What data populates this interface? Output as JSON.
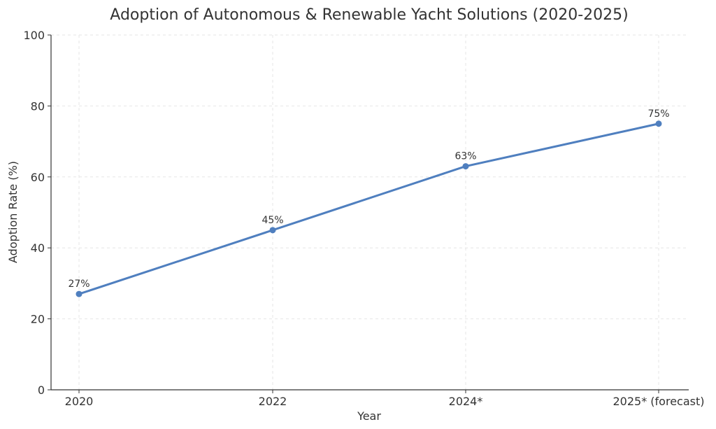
{
  "chart_data": {
    "type": "line",
    "title": "Adoption of Autonomous & Renewable Yacht Solutions (2020-2025)",
    "xlabel": "Year",
    "ylabel": "Adoption Rate (%)",
    "categories": [
      "2020",
      "2022",
      "2024*",
      "2025* (forecast)"
    ],
    "series": [
      {
        "values": [
          27,
          45,
          63,
          75
        ],
        "labels": [
          "27%",
          "45%",
          "63%",
          "75%"
        ]
      }
    ],
    "ylim": [
      0,
      100
    ],
    "yticks": [
      "0",
      "20",
      "40",
      "60",
      "80",
      "100"
    ],
    "grid": true,
    "legend": "none",
    "colors": {
      "series": "#4f7fbf",
      "axis": "#333333",
      "grid": "#e6e6e6"
    }
  }
}
